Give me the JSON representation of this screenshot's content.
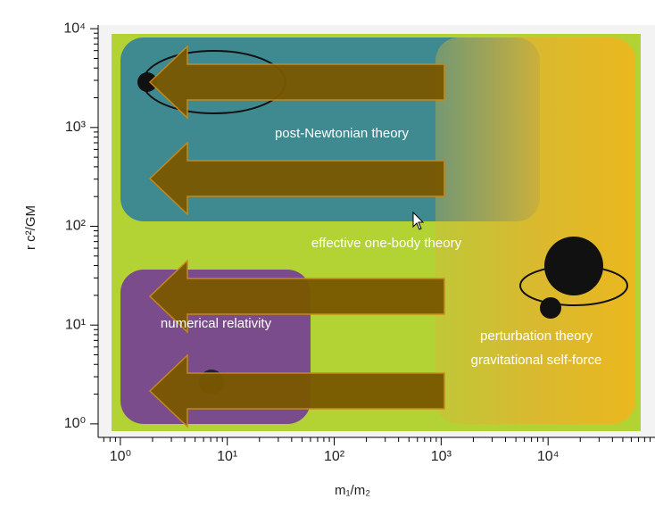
{
  "chart_data": {
    "type": "region",
    "xlabel": "m₁/m₂",
    "ylabel": "r c²/GM",
    "log_x": true,
    "log_y": true,
    "xlim": [
      0.62,
      100000
    ],
    "ylim": [
      0.73,
      10900
    ],
    "xticks": [
      {
        "value": 1,
        "label": "10⁰"
      },
      {
        "value": 10,
        "label": "10¹"
      },
      {
        "value": 100,
        "label": "10²"
      },
      {
        "value": 1000,
        "label": "10³"
      },
      {
        "value": 10000,
        "label": "10⁴"
      }
    ],
    "yticks": [
      {
        "value": 1,
        "label": "10⁰"
      },
      {
        "value": 10,
        "label": "10¹"
      },
      {
        "value": 100,
        "label": "10²"
      },
      {
        "value": 1000,
        "label": "10³"
      },
      {
        "value": 10000,
        "label": "10⁴"
      }
    ],
    "regions": [
      "post-Newtonian theory",
      "effective one-body theory",
      "numerical relativity",
      "perturbation theory",
      "gravitational self-force"
    ]
  }
}
